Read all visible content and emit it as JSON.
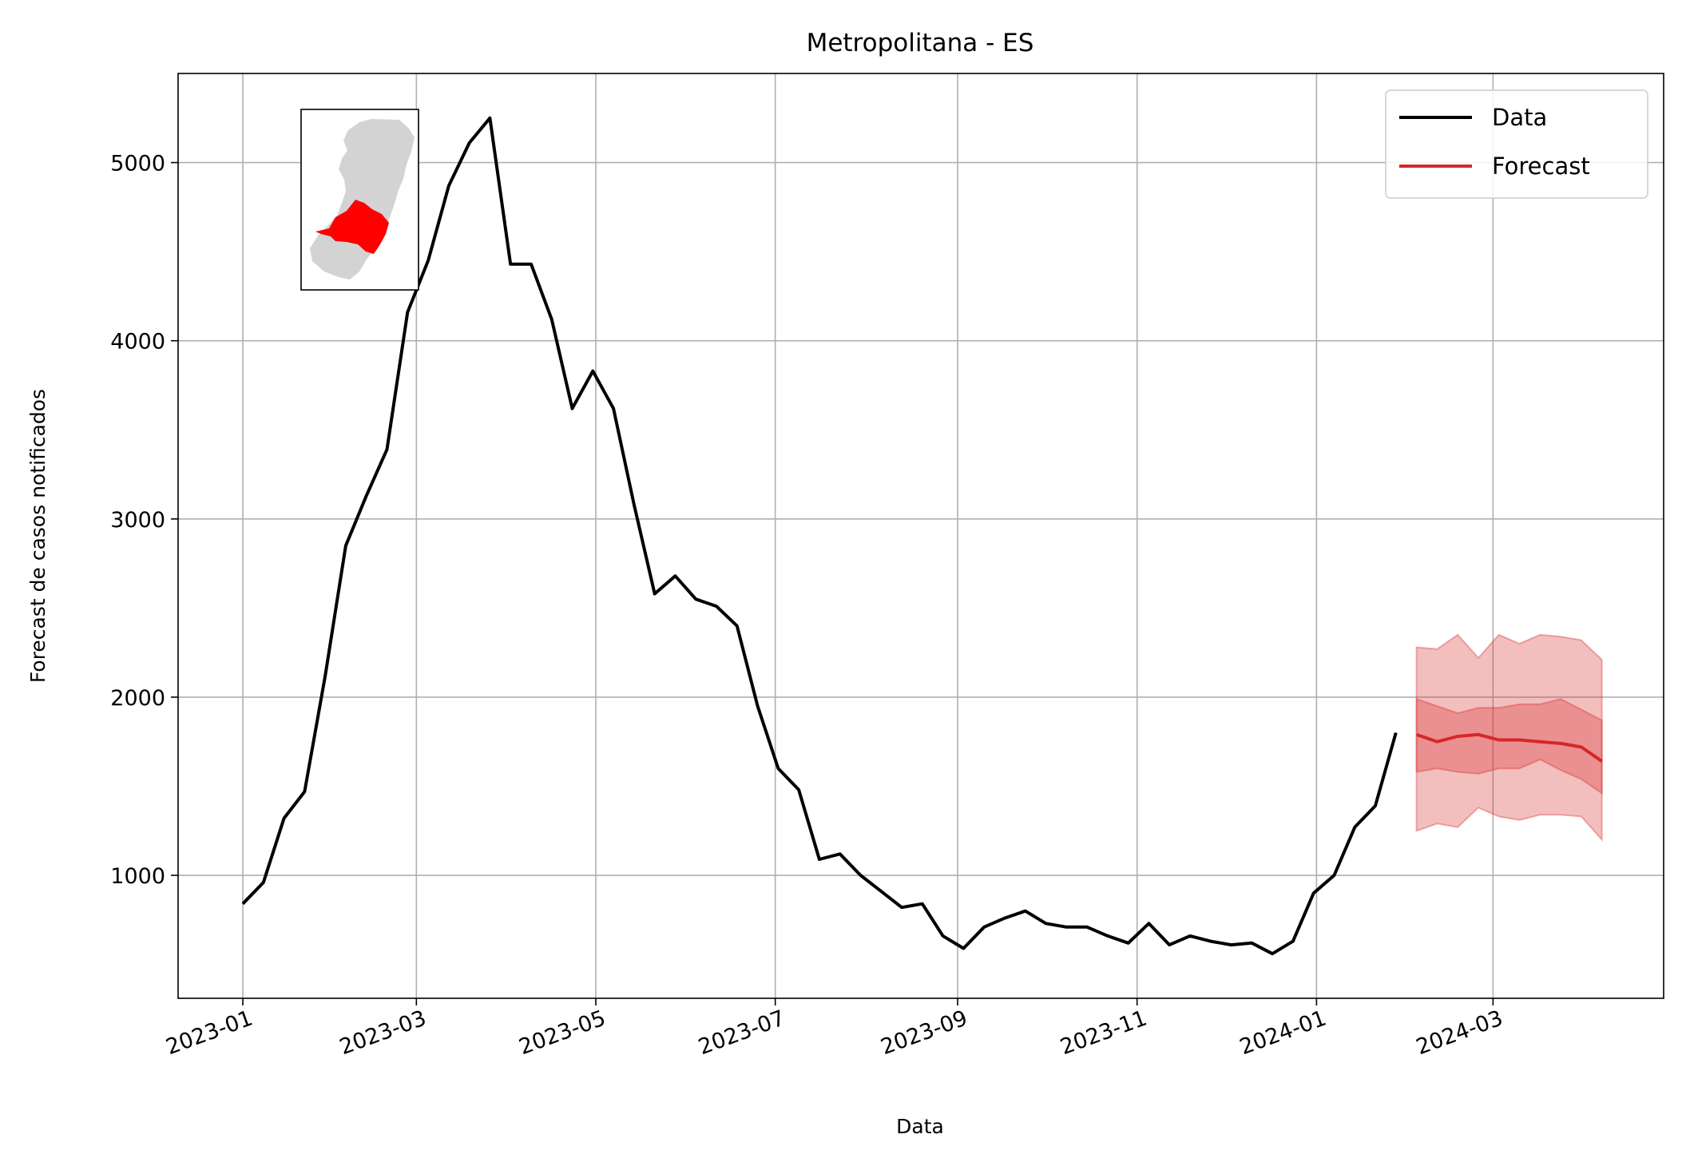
{
  "chart_data": {
    "type": "line",
    "title": "Metropolitana - ES",
    "xlabel": "Data",
    "ylabel": "Forecast de casos notificados",
    "x_ticks": [
      "2023-01",
      "2023-03",
      "2023-05",
      "2023-07",
      "2023-09",
      "2023-11",
      "2024-01",
      "2024-03"
    ],
    "y_ticks": [
      1000,
      2000,
      3000,
      4000,
      5000
    ],
    "xlim": [
      "2022-12-10",
      "2024-04-28"
    ],
    "ylim": [
      310,
      5500
    ],
    "grid": true,
    "legend_position": "top-right",
    "legend": [
      "Data",
      "Forecast"
    ],
    "colors": {
      "data": "#000000",
      "forecast": "#d62728",
      "map_region": "#ff0000",
      "map_state": "#d3d3d3"
    },
    "series": [
      {
        "name": "Data",
        "x": [
          "2023-01-01",
          "2023-01-08",
          "2023-01-15",
          "2023-01-22",
          "2023-01-29",
          "2023-02-05",
          "2023-02-12",
          "2023-02-19",
          "2023-02-26",
          "2023-03-05",
          "2023-03-12",
          "2023-03-19",
          "2023-03-26",
          "2023-04-02",
          "2023-04-09",
          "2023-04-16",
          "2023-04-23",
          "2023-04-30",
          "2023-05-07",
          "2023-05-14",
          "2023-05-21",
          "2023-05-28",
          "2023-06-04",
          "2023-06-11",
          "2023-06-18",
          "2023-06-25",
          "2023-07-02",
          "2023-07-09",
          "2023-07-16",
          "2023-07-23",
          "2023-07-30",
          "2023-08-06",
          "2023-08-13",
          "2023-08-20",
          "2023-08-27",
          "2023-09-03",
          "2023-09-10",
          "2023-09-17",
          "2023-09-24",
          "2023-10-01",
          "2023-10-08",
          "2023-10-15",
          "2023-10-22",
          "2023-10-29",
          "2023-11-05",
          "2023-11-12",
          "2023-11-19",
          "2023-11-26",
          "2023-12-03",
          "2023-12-10",
          "2023-12-17",
          "2023-12-24",
          "2023-12-31",
          "2024-01-07",
          "2024-01-14",
          "2024-01-21",
          "2024-01-28"
        ],
        "values": [
          840,
          960,
          1320,
          1470,
          2120,
          2850,
          3130,
          3390,
          4160,
          4450,
          4870,
          5110,
          5250,
          4430,
          4430,
          4120,
          3620,
          3830,
          3620,
          3080,
          2580,
          2680,
          2550,
          2510,
          2400,
          1950,
          1600,
          1480,
          1090,
          1120,
          1000,
          910,
          820,
          840,
          660,
          590,
          710,
          760,
          800,
          730,
          710,
          710,
          660,
          620,
          730,
          610,
          660,
          630,
          610,
          620,
          560,
          630,
          900,
          1000,
          1270,
          1390,
          1800
        ]
      },
      {
        "name": "Forecast",
        "x": [
          "2024-02-04",
          "2024-02-11",
          "2024-02-18",
          "2024-02-25",
          "2024-03-03",
          "2024-03-10",
          "2024-03-17",
          "2024-03-24",
          "2024-03-31",
          "2024-04-07"
        ],
        "values": [
          1790,
          1750,
          1780,
          1790,
          1760,
          1760,
          1750,
          1740,
          1720,
          1640
        ],
        "inner_upper": [
          1990,
          1950,
          1910,
          1940,
          1940,
          1960,
          1960,
          1990,
          1930,
          1870
        ],
        "inner_lower": [
          1580,
          1600,
          1580,
          1570,
          1600,
          1600,
          1650,
          1590,
          1540,
          1460
        ],
        "outer_upper": [
          2280,
          2270,
          2350,
          2220,
          2350,
          2300,
          2350,
          2340,
          2320,
          2210
        ],
        "outer_lower": [
          1250,
          1290,
          1270,
          1380,
          1330,
          1310,
          1340,
          1340,
          1330,
          1200
        ]
      }
    ]
  }
}
